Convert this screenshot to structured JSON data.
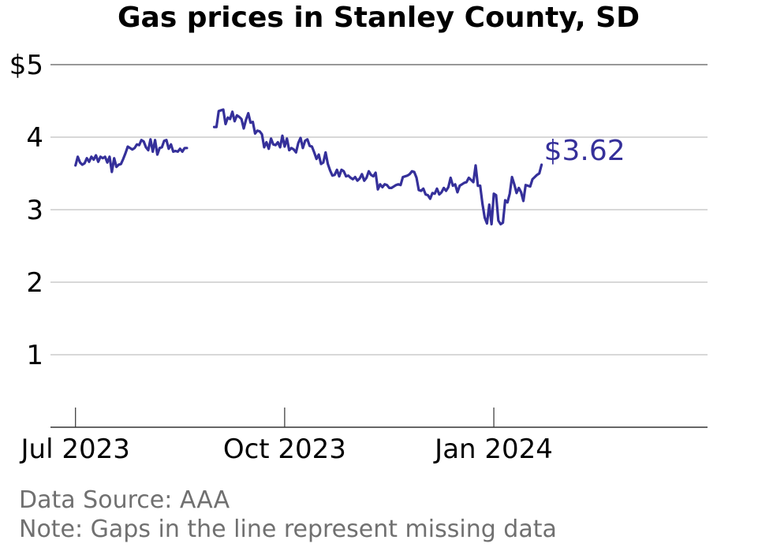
{
  "chart_data": {
    "type": "line",
    "title": "Gas prices in Stanley County, SD",
    "xlabel": "",
    "ylabel": "",
    "ylim": [
      0,
      5
    ],
    "y_ticks": [
      1,
      2,
      3,
      4,
      5
    ],
    "y_tick_labels": [
      "1",
      "2",
      "3",
      "4",
      "$5"
    ],
    "x_ticks": [
      "2023-07-01",
      "2023-10-01",
      "2024-01-01"
    ],
    "x_tick_labels": [
      "Jul 2023",
      "Oct 2023",
      "Jan 2024"
    ],
    "xlim": [
      "2023-06-20",
      "2024-04-04"
    ],
    "grid": "horizontal",
    "line_color": "#35309a",
    "end_label": "$3.62",
    "series": [
      {
        "segments": [
          {
            "start_date": "2023-07-01",
            "values": [
              3.61,
              3.73,
              3.65,
              3.62,
              3.64,
              3.71,
              3.66,
              3.73,
              3.69,
              3.75,
              3.66,
              3.73,
              3.71,
              3.73,
              3.65,
              3.73,
              3.52,
              3.71,
              3.59,
              3.62,
              3.63,
              3.7,
              3.78,
              3.87,
              3.85,
              3.83,
              3.85,
              3.9,
              3.89,
              3.96,
              3.94,
              3.86,
              3.82,
              3.97,
              3.8,
              3.96,
              3.76,
              3.85,
              3.86,
              3.95,
              3.96,
              3.84,
              3.9,
              3.8,
              3.81,
              3.8,
              3.84,
              3.8,
              3.85,
              3.85
            ]
          },
          {
            "start_date": "2023-08-31",
            "values": [
              4.14,
              4.14,
              4.36,
              4.37,
              4.38,
              4.18,
              4.27,
              4.25,
              4.35,
              4.22,
              4.3,
              4.28,
              4.25,
              4.12,
              4.24,
              4.33,
              4.2,
              4.21,
              4.05,
              4.09,
              4.08,
              4.04,
              3.86,
              3.93,
              3.84,
              3.98,
              3.9,
              3.89,
              3.93,
              3.86,
              4.02,
              3.87,
              3.98,
              3.82,
              3.85,
              3.83,
              3.79,
              3.92,
              3.99,
              3.85,
              3.95,
              3.97,
              3.88,
              3.87,
              3.79,
              3.7,
              3.76,
              3.63,
              3.65,
              3.79,
              3.63,
              3.54,
              3.47,
              3.48,
              3.55,
              3.46,
              3.55,
              3.53,
              3.46,
              3.47,
              3.44,
              3.42,
              3.45,
              3.4,
              3.43,
              3.49,
              3.4,
              3.44,
              3.53,
              3.48,
              3.46,
              3.51,
              3.28,
              3.35,
              3.31,
              3.35,
              3.34,
              3.3,
              3.3,
              3.32,
              3.34,
              3.35,
              3.34,
              3.45,
              3.46,
              3.47,
              3.49,
              3.53,
              3.52,
              3.44,
              3.27,
              3.26,
              3.29,
              3.21,
              3.2,
              3.15,
              3.23,
              3.22,
              3.29,
              3.21,
              3.24,
              3.3,
              3.26,
              3.31,
              3.44,
              3.33,
              3.35,
              3.24,
              3.33,
              3.35,
              3.37,
              3.38,
              3.44,
              3.41,
              3.38,
              3.61,
              3.33,
              3.33,
              3.08,
              2.89,
              2.81,
              3.07,
              2.8,
              3.22,
              3.2,
              2.85,
              2.8,
              2.82,
              3.13,
              3.1,
              3.22,
              3.45,
              3.35,
              3.23,
              3.3,
              3.24,
              3.12,
              3.34,
              3.33,
              3.32,
              3.42,
              3.45,
              3.48,
              3.5,
              3.62
            ]
          }
        ]
      }
    ]
  },
  "footer": {
    "source": "Data Source: AAA",
    "note": "Note: Gaps in the line represent missing data"
  }
}
